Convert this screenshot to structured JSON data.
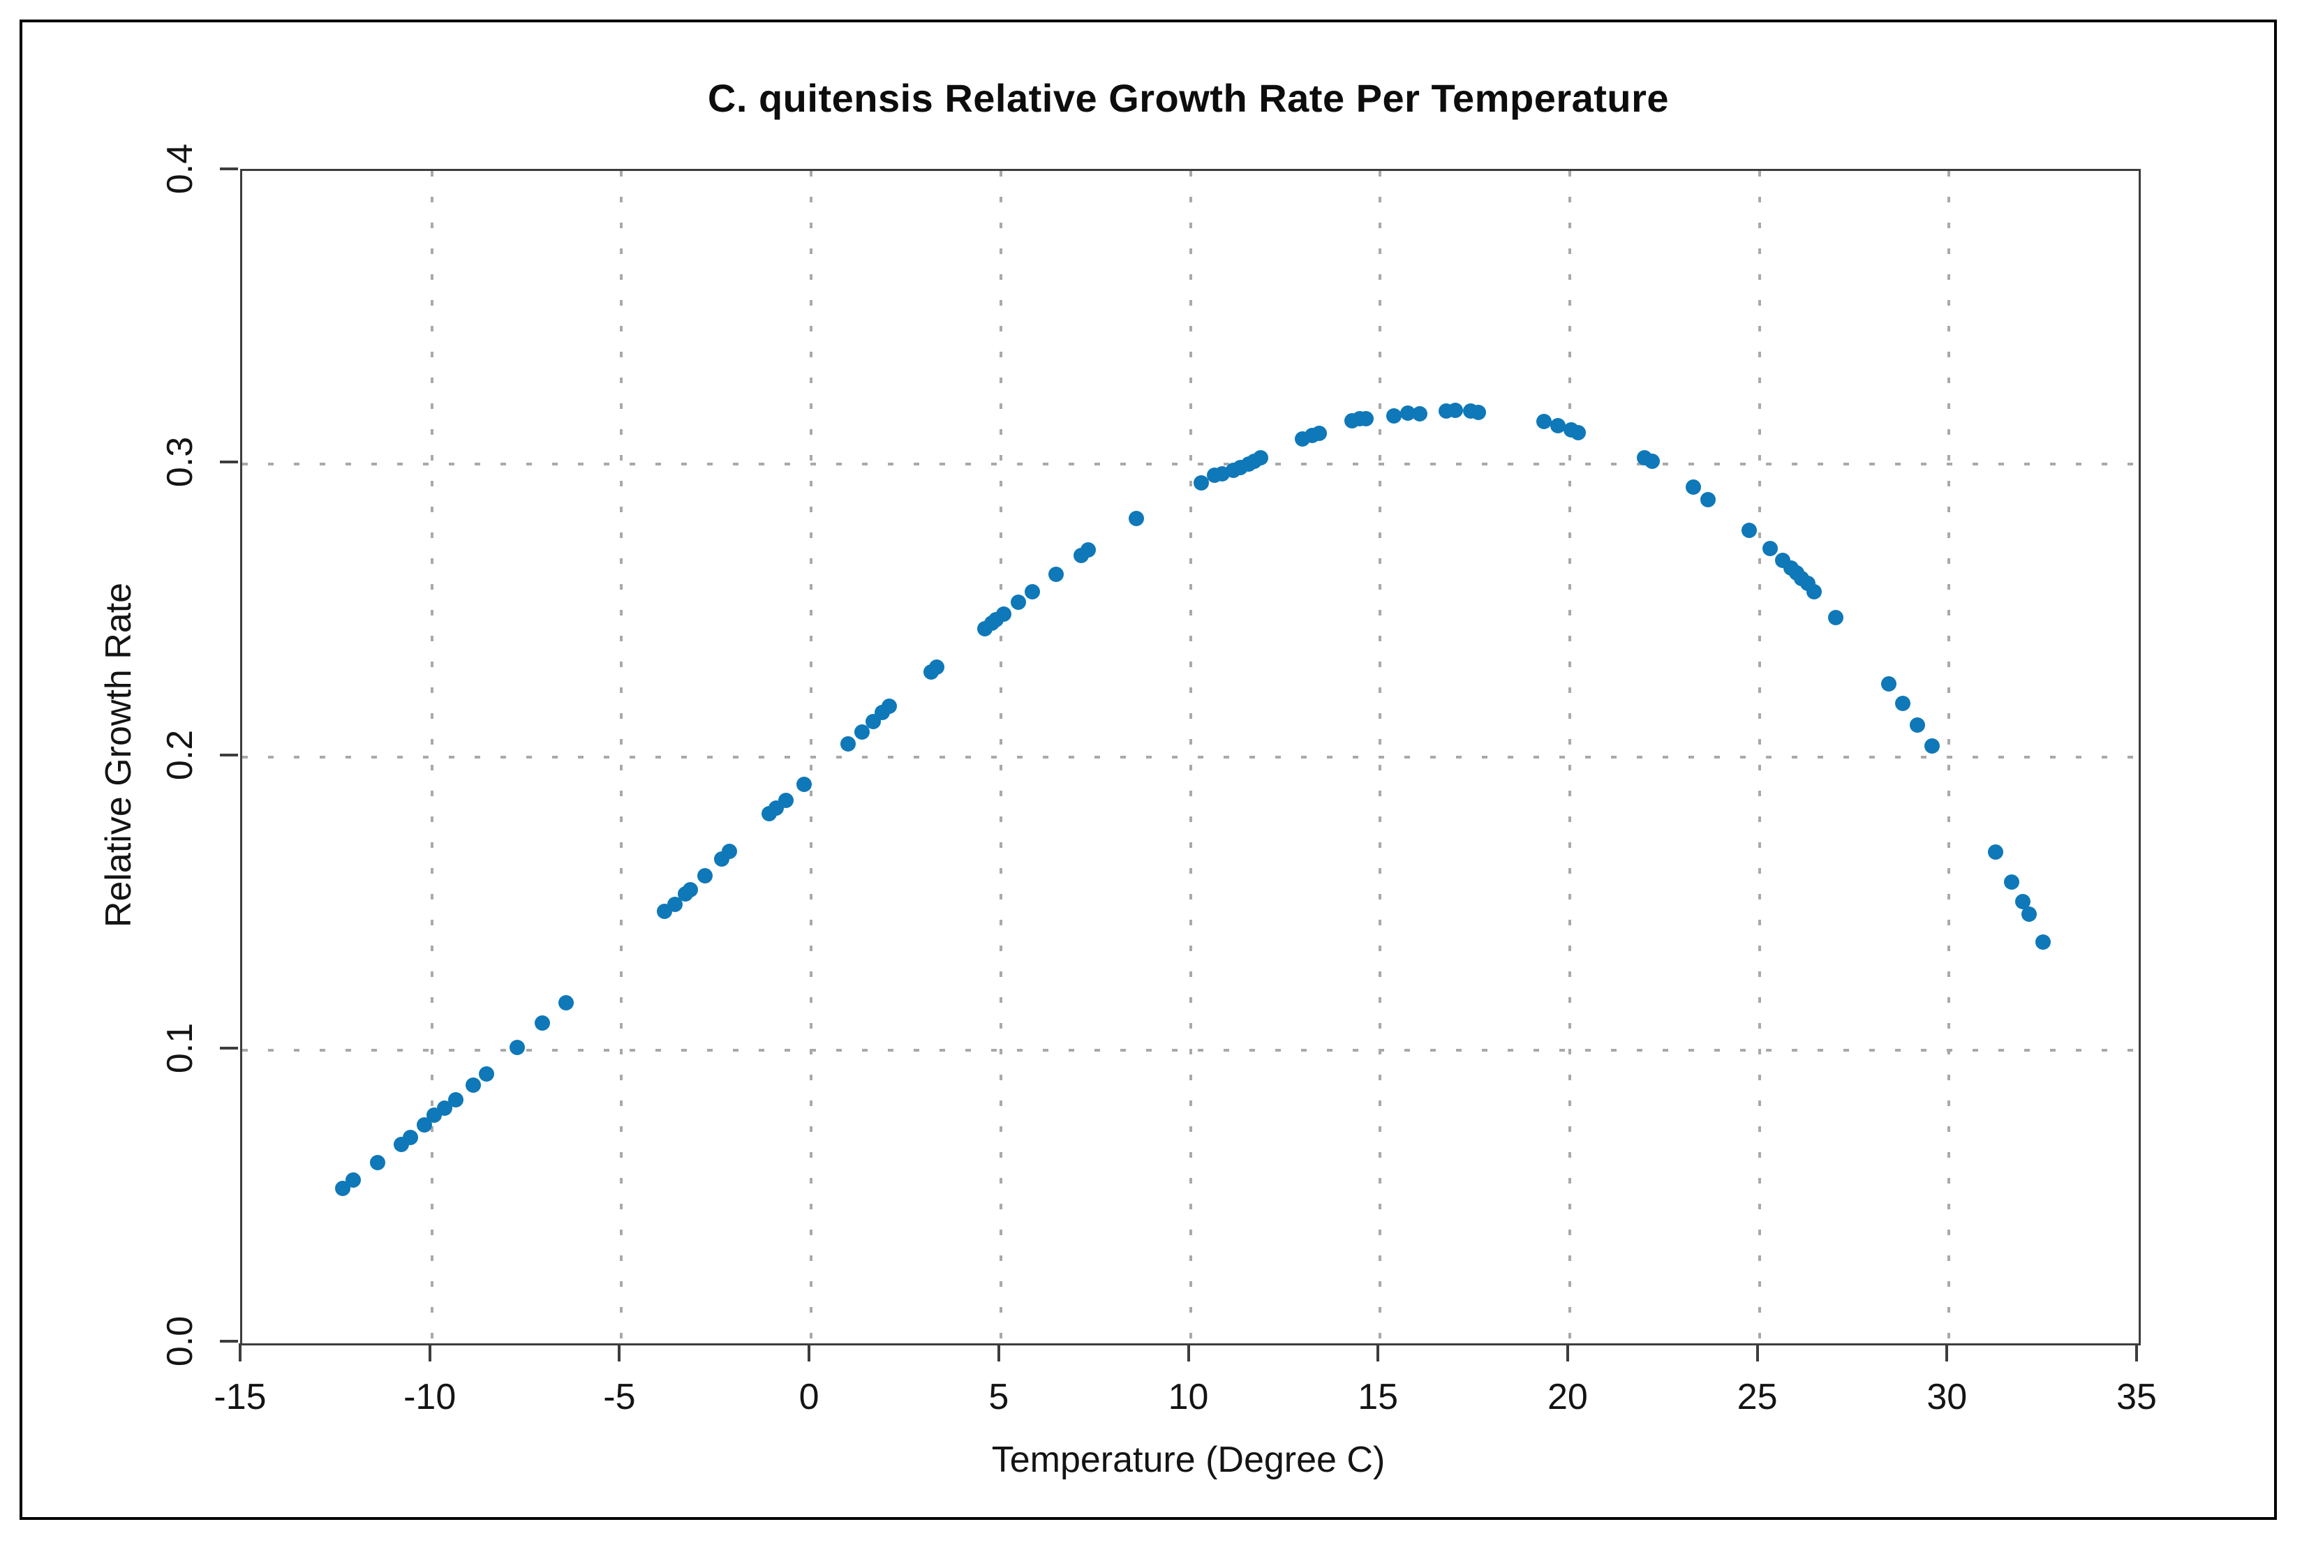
{
  "page": {
    "background_color": "#ffffff",
    "border_color": "#000000"
  },
  "chart_data": {
    "type": "scatter",
    "title": "C. quitensis Relative Growth Rate Per Temperature",
    "xlabel": "Temperature (Degree C)",
    "ylabel": "Relative Growth Rate",
    "xlim": [
      -15,
      35
    ],
    "ylim": [
      0,
      0.4
    ],
    "x_ticks": [
      -15,
      -10,
      -5,
      0,
      5,
      10,
      15,
      20,
      25,
      30,
      35
    ],
    "x_tick_labels": [
      "-15",
      "-10",
      "-5",
      "0",
      "5",
      "10",
      "15",
      "20",
      "25",
      "30",
      "35"
    ],
    "y_ticks": [
      0,
      0.1,
      0.2,
      0.3,
      0.4
    ],
    "y_tick_labels": [
      "0.0",
      "0.1",
      "0.2",
      "0.3",
      "0.4"
    ],
    "grid": "dotted gray at interior ticks",
    "legend": "none",
    "point_color": "#0e78b8",
    "frame_color": "#3d3d3d",
    "grid_color": "#a9a9a9",
    "points": [
      [
        -12.35,
        0.0529
      ],
      [
        -12.07,
        0.0557
      ],
      [
        -11.43,
        0.0617
      ],
      [
        -10.81,
        0.0678
      ],
      [
        -10.56,
        0.0702
      ],
      [
        -10.19,
        0.0745
      ],
      [
        -9.94,
        0.0779
      ],
      [
        -9.66,
        0.0802
      ],
      [
        -9.37,
        0.0831
      ],
      [
        -8.9,
        0.0881
      ],
      [
        -8.56,
        0.0919
      ],
      [
        -7.75,
        0.101
      ],
      [
        -7.08,
        0.1093
      ],
      [
        -6.46,
        0.1162
      ],
      [
        -3.86,
        0.1474
      ],
      [
        -3.59,
        0.1498
      ],
      [
        -3.31,
        0.1533
      ],
      [
        -3.19,
        0.1548
      ],
      [
        -2.8,
        0.1595
      ],
      [
        -2.36,
        0.1652
      ],
      [
        -2.15,
        0.1679
      ],
      [
        -1.1,
        0.1807
      ],
      [
        -0.92,
        0.1826
      ],
      [
        -0.66,
        0.1852
      ],
      [
        -0.19,
        0.1907
      ],
      [
        0.97,
        0.2045
      ],
      [
        1.34,
        0.2086
      ],
      [
        1.64,
        0.2121
      ],
      [
        1.88,
        0.2152
      ],
      [
        2.06,
        0.2174
      ],
      [
        3.17,
        0.229
      ],
      [
        3.31,
        0.2307
      ],
      [
        4.58,
        0.2438
      ],
      [
        4.77,
        0.2457
      ],
      [
        4.88,
        0.2469
      ],
      [
        5.07,
        0.2488
      ],
      [
        5.47,
        0.2529
      ],
      [
        5.84,
        0.2564
      ],
      [
        6.45,
        0.2624
      ],
      [
        7.12,
        0.2688
      ],
      [
        7.31,
        0.2707
      ],
      [
        8.57,
        0.2815
      ],
      [
        10.29,
        0.2936
      ],
      [
        10.64,
        0.2962
      ],
      [
        10.84,
        0.2967
      ],
      [
        11.14,
        0.2979
      ],
      [
        11.32,
        0.2988
      ],
      [
        11.54,
        0.3
      ],
      [
        11.69,
        0.301
      ],
      [
        11.85,
        0.3021
      ],
      [
        12.95,
        0.3086
      ],
      [
        13.21,
        0.3098
      ],
      [
        13.4,
        0.3105
      ],
      [
        14.26,
        0.3148
      ],
      [
        14.47,
        0.3155
      ],
      [
        14.63,
        0.3155
      ],
      [
        15.37,
        0.3164
      ],
      [
        15.73,
        0.3174
      ],
      [
        16.05,
        0.3171
      ],
      [
        16.75,
        0.318
      ],
      [
        16.98,
        0.3183
      ],
      [
        17.38,
        0.3181
      ],
      [
        17.6,
        0.3177
      ],
      [
        19.32,
        0.3145
      ],
      [
        19.69,
        0.3131
      ],
      [
        20.03,
        0.3117
      ],
      [
        20.22,
        0.3107
      ],
      [
        21.97,
        0.3021
      ],
      [
        22.17,
        0.301
      ],
      [
        23.26,
        0.2921
      ],
      [
        23.65,
        0.2879
      ],
      [
        24.73,
        0.2774
      ],
      [
        25.28,
        0.2712
      ],
      [
        25.62,
        0.2671
      ],
      [
        25.84,
        0.2645
      ],
      [
        25.99,
        0.2629
      ],
      [
        26.12,
        0.261
      ],
      [
        26.28,
        0.2593
      ],
      [
        26.45,
        0.2564
      ],
      [
        27.02,
        0.2476
      ],
      [
        28.42,
        0.225
      ],
      [
        28.78,
        0.2183
      ],
      [
        29.17,
        0.211
      ],
      [
        29.56,
        0.2038
      ],
      [
        31.23,
        0.1676
      ],
      [
        31.65,
        0.1574
      ],
      [
        31.95,
        0.1507
      ],
      [
        32.11,
        0.1464
      ],
      [
        32.48,
        0.1369
      ]
    ]
  }
}
